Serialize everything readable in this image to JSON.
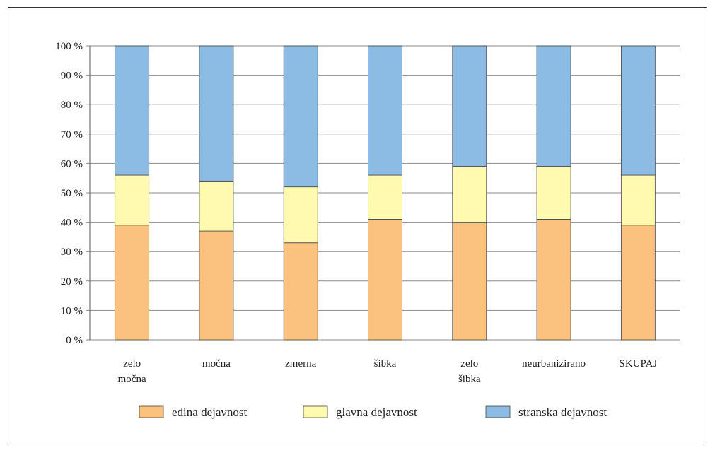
{
  "chart_data": {
    "type": "bar",
    "stacked": "percent",
    "categories": [
      [
        "zelo",
        "močna"
      ],
      [
        "močna"
      ],
      [
        "zmerna"
      ],
      [
        "šibka"
      ],
      [
        "zelo",
        "šibka"
      ],
      [
        "neurbanizirano"
      ],
      [
        "SKUPAJ"
      ]
    ],
    "series": [
      {
        "name": "edina dejavnost",
        "color": "#FAC27E",
        "values": [
          39,
          37,
          33,
          41,
          40,
          41,
          39
        ]
      },
      {
        "name": "glavna dejavnost",
        "color": "#FFFAB0",
        "values": [
          17,
          17,
          19,
          15,
          19,
          18,
          17
        ]
      },
      {
        "name": "stranska dejavnost",
        "color": "#8CBCE4",
        "values": [
          44,
          46,
          48,
          44,
          41,
          41,
          44
        ]
      }
    ],
    "ylim": [
      0,
      100
    ],
    "yticks": [
      "0 %",
      "10 %",
      "20 %",
      "30 %",
      "40 %",
      "50 %",
      "60 %",
      "70 %",
      "80 %",
      "90 %",
      "100 %"
    ],
    "grid": true,
    "legend_position": "bottom"
  }
}
